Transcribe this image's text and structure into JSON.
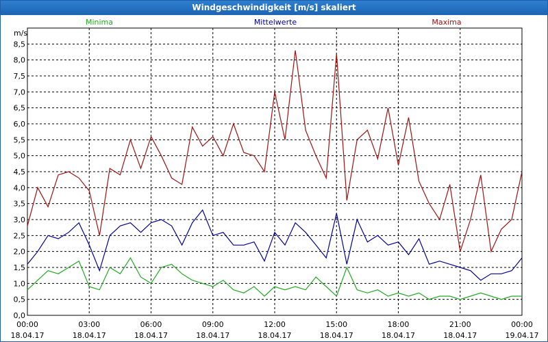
{
  "window": {
    "title": "Windgeschwindigkeit [m/s] skaliert"
  },
  "chart_data": {
    "type": "line",
    "title": "Windgeschwindigkeit [m/s] skaliert",
    "ylabel": "m/s",
    "ylim": [
      0,
      9
    ],
    "xlim": [
      0,
      24
    ],
    "grid": true,
    "yticks": [
      "0,0",
      "0,5",
      "1,0",
      "1,5",
      "2,0",
      "2,5",
      "3,0",
      "3,5",
      "4,0",
      "4,5",
      "5,0",
      "5,5",
      "6,0",
      "6,5",
      "7,0",
      "7,5",
      "8,0",
      "8,5"
    ],
    "xticks": [
      {
        "time": "00:00",
        "date": "18.04.17"
      },
      {
        "time": "03:00",
        "date": "18.04.17"
      },
      {
        "time": "06:00",
        "date": "18.04.17"
      },
      {
        "time": "09:00",
        "date": "18.04.17"
      },
      {
        "time": "12:00",
        "date": "18.04.17"
      },
      {
        "time": "15:00",
        "date": "18.04.17"
      },
      {
        "time": "18:00",
        "date": "18.04.17"
      },
      {
        "time": "21:00",
        "date": "18.04.17"
      },
      {
        "time": "00:00",
        "date": "19.04.17"
      }
    ],
    "series": [
      {
        "name": "Minima",
        "color": "#22aa22",
        "x": [
          0,
          0.5,
          1,
          1.5,
          2,
          2.5,
          3,
          3.5,
          4,
          4.5,
          5,
          5.5,
          6,
          6.5,
          7,
          7.5,
          8,
          8.5,
          9,
          9.5,
          10,
          10.5,
          11,
          11.5,
          12,
          12.5,
          13,
          13.5,
          14,
          14.5,
          15,
          15.5,
          16,
          16.5,
          17,
          17.5,
          18,
          18.5,
          19,
          19.5,
          20,
          20.5,
          21,
          21.5,
          22,
          22.5,
          23,
          23.5,
          24
        ],
        "values": [
          0.8,
          1.1,
          1.4,
          1.3,
          1.5,
          1.7,
          0.9,
          0.8,
          1.5,
          1.3,
          1.8,
          1.2,
          1.0,
          1.5,
          1.6,
          1.3,
          1.1,
          1.0,
          0.9,
          1.1,
          0.8,
          0.7,
          0.9,
          0.6,
          0.9,
          0.8,
          0.9,
          0.8,
          1.2,
          0.9,
          0.6,
          1.5,
          0.8,
          0.7,
          0.8,
          0.6,
          0.7,
          0.6,
          0.7,
          0.5,
          0.6,
          0.6,
          0.5,
          0.6,
          0.7,
          0.6,
          0.5,
          0.6,
          0.6
        ]
      },
      {
        "name": "Mittelwerte",
        "color": "#0000a0",
        "x": [
          0,
          0.5,
          1,
          1.5,
          2,
          2.5,
          3,
          3.5,
          4,
          4.5,
          5,
          5.5,
          6,
          6.5,
          7,
          7.5,
          8,
          8.5,
          9,
          9.5,
          10,
          10.5,
          11,
          11.5,
          12,
          12.5,
          13,
          13.5,
          14,
          14.5,
          15,
          15.5,
          16,
          16.5,
          17,
          17.5,
          18,
          18.5,
          19,
          19.5,
          20,
          20.5,
          21,
          21.5,
          22,
          22.5,
          23,
          23.5,
          24
        ],
        "values": [
          1.6,
          2.0,
          2.5,
          2.4,
          2.6,
          2.9,
          2.2,
          1.4,
          2.5,
          2.8,
          2.9,
          2.6,
          2.9,
          3.0,
          2.8,
          2.2,
          2.9,
          3.3,
          2.5,
          2.6,
          2.2,
          2.2,
          2.3,
          1.7,
          2.6,
          2.2,
          2.9,
          2.6,
          2.2,
          1.8,
          3.2,
          1.6,
          3.0,
          2.3,
          2.5,
          2.2,
          2.3,
          1.9,
          2.4,
          1.6,
          1.7,
          1.6,
          1.5,
          1.4,
          1.1,
          1.3,
          1.3,
          1.4,
          1.8
        ]
      },
      {
        "name": "Maxima",
        "color": "#a01010",
        "x": [
          0,
          0.5,
          1,
          1.5,
          2,
          2.5,
          3,
          3.5,
          4,
          4.5,
          5,
          5.5,
          6,
          6.5,
          7,
          7.5,
          8,
          8.5,
          9,
          9.5,
          10,
          10.5,
          11,
          11.5,
          12,
          12.5,
          13,
          13.5,
          14,
          14.5,
          15,
          15.5,
          16,
          16.5,
          17,
          17.5,
          18,
          18.5,
          19,
          19.5,
          20,
          20.5,
          21,
          21.5,
          22,
          22.5,
          23,
          23.5,
          24
        ],
        "values": [
          2.8,
          4.0,
          3.4,
          4.4,
          4.5,
          4.3,
          3.9,
          2.5,
          4.6,
          4.4,
          5.5,
          4.6,
          5.6,
          5.0,
          4.3,
          4.1,
          5.9,
          5.3,
          5.6,
          5.0,
          6.0,
          5.1,
          5.0,
          4.5,
          7.0,
          5.5,
          8.3,
          5.8,
          5.0,
          4.3,
          8.2,
          3.6,
          5.5,
          5.8,
          4.9,
          6.5,
          4.7,
          6.2,
          4.2,
          3.5,
          3.0,
          4.1,
          2.0,
          3.0,
          4.4,
          2.0,
          2.7,
          3.0,
          4.5
        ]
      }
    ]
  }
}
